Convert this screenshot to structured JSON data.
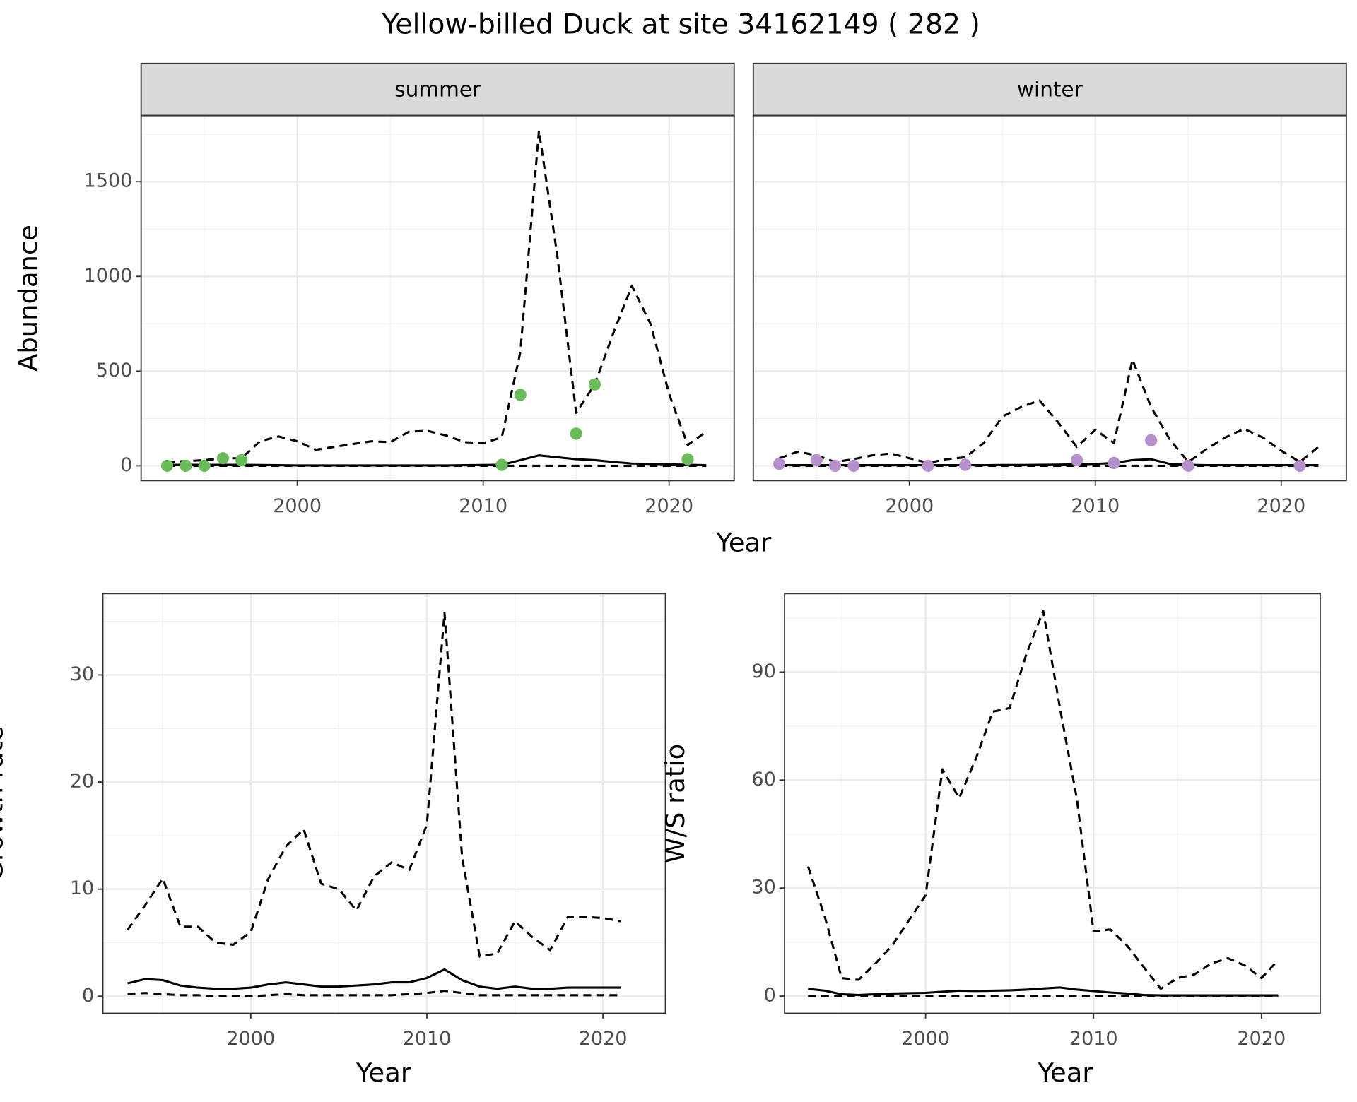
{
  "title": "Yellow-billed Duck at site 34162149 ( 282 )",
  "chart_data": [
    {
      "type": "line",
      "facet": "summer",
      "ylabel": "Abundance",
      "xlabel": "Year",
      "xlim": [
        1991.6,
        2023.5
      ],
      "xticks": [
        2000,
        2010,
        2020
      ],
      "xminor": [
        1995,
        2005,
        2015
      ],
      "ylim": [
        -78,
        1849
      ],
      "yticks": [
        0,
        500,
        1000,
        1500
      ],
      "yminor": [
        250,
        750,
        1250,
        1750
      ],
      "x": [
        1993,
        1994,
        1995,
        1996,
        1997,
        1998,
        1999,
        2000,
        2001,
        2002,
        2003,
        2004,
        2005,
        2006,
        2007,
        2008,
        2009,
        2010,
        2011,
        2012,
        2013,
        2014,
        2015,
        2016,
        2017,
        2018,
        2019,
        2020,
        2021,
        2022
      ],
      "series": [
        {
          "color": "#000000",
          "style": "dashed",
          "values": [
            20,
            25,
            30,
            40,
            40,
            130,
            155,
            130,
            85,
            100,
            115,
            130,
            125,
            180,
            185,
            160,
            125,
            120,
            150,
            600,
            1770,
            1100,
            280,
            430,
            700,
            950,
            750,
            380,
            110,
            180
          ]
        },
        {
          "color": "#000000",
          "style": "solid",
          "values": [
            5,
            5,
            5,
            5,
            5,
            4,
            3,
            2,
            2,
            2,
            2,
            2,
            2,
            2,
            2,
            2,
            3,
            4,
            5,
            30,
            55,
            45,
            35,
            30,
            20,
            12,
            10,
            8,
            5,
            3
          ]
        },
        {
          "color": "#000000",
          "style": "dashed",
          "values": [
            0,
            0,
            0,
            0,
            0,
            0,
            0,
            0,
            0,
            0,
            0,
            0,
            0,
            0,
            0,
            0,
            0,
            0,
            0,
            0,
            0,
            0,
            0,
            0,
            0,
            0,
            0,
            0,
            0,
            0
          ]
        }
      ],
      "points": {
        "color": "#6abb5a",
        "x": [
          1993,
          1994,
          1995,
          1996,
          1997,
          2011,
          2012,
          2015,
          2016,
          2021
        ],
        "values": [
          0,
          0,
          0,
          40,
          30,
          5,
          375,
          170,
          430,
          35
        ]
      }
    },
    {
      "type": "line",
      "facet": "winter",
      "xlim": [
        1991.6,
        2023.5
      ],
      "xticks": [
        2000,
        2010,
        2020
      ],
      "xminor": [
        1995,
        2005,
        2015
      ],
      "ylim": [
        -78,
        1849
      ],
      "yticks": [
        0,
        500,
        1000,
        1500
      ],
      "yminor": [
        250,
        750,
        1250,
        1750
      ],
      "x": [
        1993,
        1994,
        1995,
        1996,
        1997,
        1998,
        1999,
        2000,
        2001,
        2002,
        2003,
        2004,
        2005,
        2006,
        2007,
        2008,
        2009,
        2010,
        2011,
        2012,
        2013,
        2014,
        2015,
        2016,
        2017,
        2018,
        2019,
        2020,
        2021,
        2022
      ],
      "series": [
        {
          "color": "#000000",
          "style": "dashed",
          "values": [
            40,
            75,
            55,
            20,
            35,
            55,
            65,
            40,
            15,
            35,
            45,
            120,
            260,
            310,
            345,
            230,
            100,
            190,
            120,
            560,
            310,
            140,
            20,
            90,
            150,
            195,
            150,
            80,
            20,
            100
          ]
        },
        {
          "color": "#000000",
          "style": "solid",
          "values": [
            3,
            3,
            3,
            3,
            3,
            3,
            3,
            3,
            3,
            3,
            3,
            3,
            4,
            4,
            5,
            6,
            8,
            10,
            15,
            30,
            35,
            10,
            5,
            3,
            3,
            3,
            3,
            3,
            3,
            3
          ]
        },
        {
          "color": "#000000",
          "style": "dashed",
          "values": [
            0,
            0,
            0,
            0,
            0,
            0,
            0,
            0,
            0,
            0,
            0,
            0,
            0,
            0,
            0,
            0,
            0,
            0,
            0,
            0,
            0,
            0,
            0,
            0,
            0,
            0,
            0,
            0,
            0,
            0
          ]
        }
      ],
      "points": {
        "color": "#b58fca",
        "x": [
          1993,
          1995,
          1996,
          1997,
          2001,
          2003,
          2009,
          2011,
          2013,
          2015,
          2021
        ],
        "values": [
          10,
          30,
          0,
          0,
          0,
          5,
          30,
          15,
          135,
          0,
          0
        ]
      }
    },
    {
      "type": "line",
      "ylabel": "Growth rate",
      "xlabel": "Year",
      "xlim": [
        1991.6,
        2023.55
      ],
      "xticks": [
        2000,
        2010,
        2020
      ],
      "xminor": [
        1995,
        2005,
        2015
      ],
      "ylim": [
        -1.6,
        37.6
      ],
      "yticks": [
        0,
        10,
        20,
        30
      ],
      "yminor": [
        5,
        15,
        25,
        35
      ],
      "x": [
        1993,
        1994,
        1995,
        1996,
        1997,
        1998,
        1999,
        2000,
        2001,
        2002,
        2003,
        2004,
        2005,
        2006,
        2007,
        2008,
        2009,
        2010,
        2011,
        2012,
        2013,
        2014,
        2015,
        2016,
        2017,
        2018,
        2019,
        2020,
        2021
      ],
      "series": [
        {
          "color": "#000000",
          "style": "dashed",
          "values": [
            6.2,
            8.5,
            11,
            6.5,
            6.5,
            5.0,
            4.8,
            6.0,
            11,
            14,
            15.6,
            10.5,
            10.0,
            8.0,
            11.2,
            12.5,
            11.8,
            16,
            35.8,
            13,
            3.7,
            4.0,
            7,
            5.5,
            4.3,
            7.4,
            7.4,
            7.3,
            7.0
          ]
        },
        {
          "color": "#000000",
          "style": "solid",
          "values": [
            1.2,
            1.6,
            1.5,
            1.0,
            0.8,
            0.7,
            0.7,
            0.8,
            1.1,
            1.3,
            1.1,
            0.9,
            0.9,
            1.0,
            1.1,
            1.3,
            1.3,
            1.7,
            2.5,
            1.5,
            0.9,
            0.7,
            0.9,
            0.7,
            0.7,
            0.8,
            0.8,
            0.8,
            0.8
          ]
        },
        {
          "color": "#000000",
          "style": "dashed",
          "values": [
            0.2,
            0.3,
            0.2,
            0.1,
            0.1,
            0,
            0,
            0,
            0.1,
            0.2,
            0.1,
            0.1,
            0.1,
            0.1,
            0.1,
            0.1,
            0.2,
            0.3,
            0.5,
            0.3,
            0.1,
            0.1,
            0.1,
            0.1,
            0.1,
            0.1,
            0.1,
            0.1,
            0.1
          ]
        }
      ]
    },
    {
      "type": "line",
      "ylabel": "W/S ratio",
      "xlabel": "Year",
      "xlim": [
        1991.6,
        2023.5
      ],
      "xticks": [
        2000,
        2010,
        2020
      ],
      "xminor": [
        1995,
        2005,
        2015
      ],
      "ylim": [
        -4.8,
        111.8
      ],
      "yticks": [
        0,
        30,
        60,
        90
      ],
      "yminor": [
        15,
        45,
        75,
        105
      ],
      "x": [
        1993,
        1994,
        1995,
        1996,
        1997,
        1998,
        1999,
        2000,
        2001,
        2002,
        2003,
        2004,
        2005,
        2006,
        2007,
        2008,
        2009,
        2010,
        2011,
        2012,
        2013,
        2014,
        2015,
        2016,
        2017,
        2018,
        2019,
        2020,
        2021
      ],
      "series": [
        {
          "color": "#000000",
          "style": "dashed",
          "values": [
            36,
            22,
            5,
            4.5,
            9,
            14,
            21,
            28,
            63,
            55,
            66,
            79,
            80,
            95,
            107,
            80,
            55,
            18,
            18.5,
            14,
            8,
            2,
            5,
            6,
            9,
            10.5,
            8.5,
            5,
            10
          ]
        },
        {
          "color": "#000000",
          "style": "solid",
          "values": [
            2,
            1.5,
            0.5,
            0.3,
            0.5,
            0.7,
            0.8,
            0.9,
            1.2,
            1.5,
            1.4,
            1.5,
            1.6,
            1.8,
            2.1,
            2.4,
            1.8,
            1.4,
            1.0,
            0.7,
            0.3,
            0.2,
            0.2,
            0.2,
            0.2,
            0.2,
            0.2,
            0.2,
            0.2
          ]
        },
        {
          "color": "#000000",
          "style": "dashed",
          "values": [
            0,
            0,
            0,
            0,
            0,
            0,
            0,
            0,
            0,
            0,
            0,
            0,
            0,
            0,
            0,
            0,
            0,
            0,
            0,
            0,
            0,
            0,
            0,
            0,
            0,
            0,
            0,
            0,
            0
          ]
        }
      ]
    }
  ]
}
